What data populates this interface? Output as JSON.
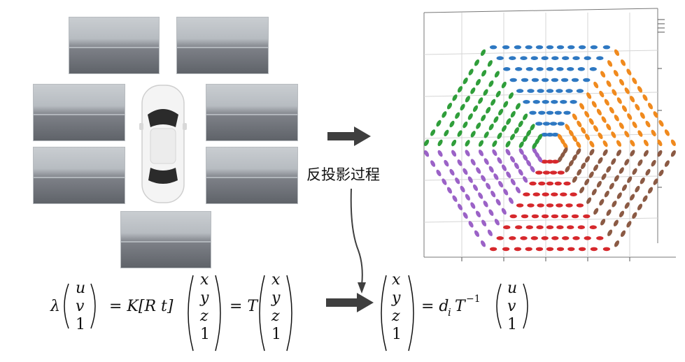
{
  "caption": "反投影过程",
  "formula_left": {
    "lambda": "λ",
    "uv1": [
      "u",
      "v",
      "1"
    ],
    "eq1": "= K[R t]",
    "xyz1": [
      "x",
      "y",
      "z",
      "1"
    ],
    "eq2": "= T"
  },
  "formula_right": {
    "xyz1": [
      "x",
      "y",
      "z",
      "1"
    ],
    "eq": "= d",
    "sub": "i",
    "t_inv": "T",
    "sup": "−1",
    "uv1": [
      "u",
      "v",
      "1"
    ]
  },
  "colors": {
    "blue": "#2e78c2",
    "orange": "#f08a1e",
    "green": "#2f9e3a",
    "purple": "#9b62c7",
    "brown": "#8b5a44",
    "red": "#d6282c",
    "arrow": "#3f3f3f"
  },
  "camera_views": [
    "front-left",
    "front-right",
    "left-front",
    "right-front",
    "left-rear",
    "right-rear",
    "rear"
  ]
}
